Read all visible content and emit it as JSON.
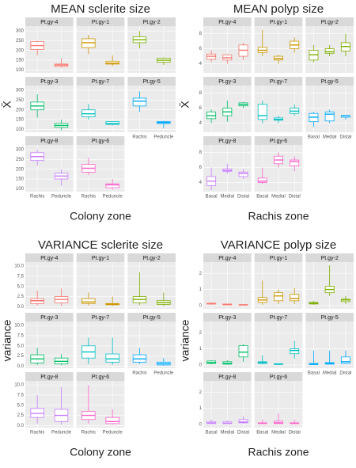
{
  "chart_data": [
    {
      "type": "box",
      "title": "MEAN sclerite size",
      "xlabel": "Colony zone",
      "ylabel": "X̄",
      "categories": [
        "Rachis",
        "Peduncle"
      ],
      "ylim": [
        85,
        325
      ],
      "yticks": [
        100,
        150,
        200,
        250,
        300
      ],
      "facets": [
        {
          "name": "Pt.gy-4",
          "color": "#F8766D",
          "boxes": [
            [
              175,
              205,
              225,
              245,
              250
            ],
            [
              110,
              118,
              125,
              130,
              160
            ]
          ]
        },
        {
          "name": "Pt.gy-1",
          "color": "#CD9600",
          "boxes": [
            [
              180,
              215,
              240,
              260,
              280
            ],
            [
              120,
              130,
              135,
              145,
              175
            ]
          ]
        },
        {
          "name": "Pt.gy-2",
          "color": "#7CAE00",
          "boxes": [
            [
              210,
              240,
              255,
              270,
              300
            ],
            [
              125,
              140,
              150,
              160,
              165
            ]
          ]
        },
        {
          "name": "Pt.gy-3",
          "color": "#00BE67",
          "boxes": [
            [
              160,
              200,
              220,
              240,
              280
            ],
            [
              95,
              110,
              120,
              130,
              150
            ]
          ]
        },
        {
          "name": "Pt.gy-7",
          "color": "#00BFC4",
          "boxes": [
            [
              150,
              165,
              180,
              200,
              230
            ],
            [
              120,
              125,
              130,
              140,
              140
            ]
          ]
        },
        {
          "name": "Pt.gy-5",
          "color": "#00A9FF",
          "boxes": [
            [
              190,
              220,
              245,
              260,
              295
            ],
            [
              105,
              130,
              135,
              140,
              145
            ]
          ]
        },
        {
          "name": "Pt.gy-8",
          "color": "#C77CFF",
          "boxes": [
            [
              220,
              245,
              265,
              285,
              300
            ],
            [
              115,
              150,
              165,
              180,
              200
            ]
          ]
        },
        {
          "name": "Pt.gy-6",
          "color": "#FF61CC",
          "boxes": [
            [
              170,
              185,
              205,
              225,
              260
            ],
            [
              95,
              105,
              120,
              125,
              150
            ]
          ]
        }
      ]
    },
    {
      "type": "box",
      "title": "MEAN polyp size",
      "xlabel": "Rachis zone",
      "ylabel": "X̄",
      "categories": [
        "Basal",
        "Medial",
        "Distal"
      ],
      "ylim": [
        2.8,
        9
      ],
      "yticks": [
        4,
        6,
        8
      ],
      "facets": [
        {
          "name": "Pt.gy-4",
          "color": "#F8766D",
          "boxes": [
            [
              4.2,
              4.6,
              5.0,
              5.3,
              5.8
            ],
            [
              4.0,
              4.5,
              4.8,
              5.2,
              5.3
            ],
            [
              4.5,
              5.0,
              5.8,
              6.5,
              6.8
            ]
          ]
        },
        {
          "name": "Pt.gy-1",
          "color": "#CD9600",
          "boxes": [
            [
              5.0,
              5.5,
              5.8,
              6.2,
              8.5
            ],
            [
              4.0,
              4.5,
              4.7,
              5.0,
              5.2
            ],
            [
              5.5,
              6.0,
              6.5,
              7.0,
              7.5
            ]
          ]
        },
        {
          "name": "Pt.gy-2",
          "color": "#7CAE00",
          "boxes": [
            [
              4.2,
              4.5,
              5.2,
              5.8,
              6.5
            ],
            [
              5.0,
              5.4,
              5.6,
              6.0,
              6.5
            ],
            [
              5.0,
              5.7,
              6.3,
              6.8,
              8.0
            ]
          ]
        },
        {
          "name": "Pt.gy-3",
          "color": "#00BE67",
          "boxes": [
            [
              4.0,
              4.6,
              5.0,
              5.5,
              5.8
            ],
            [
              4.2,
              5.0,
              5.5,
              6.0,
              7.0
            ],
            [
              6.0,
              6.3,
              6.5,
              6.7,
              6.8
            ]
          ]
        },
        {
          "name": "Pt.gy-7",
          "color": "#00BFC4",
          "boxes": [
            [
              4.0,
              4.5,
              5.0,
              6.5,
              7.0
            ],
            [
              4.0,
              4.4,
              4.5,
              4.7,
              5.0
            ],
            [
              5.0,
              5.3,
              5.6,
              6.0,
              6.5
            ]
          ]
        },
        {
          "name": "Pt.gy-5",
          "color": "#00A9FF",
          "boxes": [
            [
              3.5,
              4.2,
              4.8,
              5.3,
              5.5
            ],
            [
              4.0,
              4.3,
              5.2,
              5.5,
              5.8
            ],
            [
              4.5,
              4.8,
              5.0,
              5.0,
              5.0
            ]
          ]
        },
        {
          "name": "Pt.gy-8",
          "color": "#C77CFF",
          "boxes": [
            [
              3.0,
              3.6,
              4.2,
              4.8,
              6.0
            ],
            [
              5.2,
              5.5,
              5.6,
              5.8,
              6.5
            ],
            [
              4.5,
              4.8,
              5.2,
              5.4,
              5.8
            ]
          ]
        },
        {
          "name": "Pt.gy-6",
          "color": "#FF61CC",
          "boxes": [
            [
              3.8,
              4.0,
              4.2,
              4.6,
              6.0
            ],
            [
              6.0,
              6.5,
              7.0,
              7.5,
              8.0
            ],
            [
              5.5,
              6.2,
              6.8,
              7.0,
              7.5
            ]
          ]
        }
      ]
    },
    {
      "type": "box",
      "title": "VARIANCE sclerite size",
      "xlabel": "Colony zone",
      "ylabel": "variance",
      "categories": [
        "Rachis",
        "Peduncle"
      ],
      "ylim": [
        -0.5,
        11
      ],
      "yticks": [
        {
          "value": 0,
          "label": "0.0"
        },
        2.5,
        {
          "value": 5,
          "label": "5.0"
        },
        7.5,
        {
          "value": 10,
          "label": "10.0"
        }
      ],
      "facets": [
        {
          "name": "Pt.gy-4",
          "color": "#F8766D",
          "boxes": [
            [
              0.3,
              0.8,
              1.5,
              2.0,
              4.0
            ],
            [
              0.2,
              1.0,
              1.8,
              2.5,
              4.5
            ]
          ]
        },
        {
          "name": "Pt.gy-1",
          "color": "#CD9600",
          "boxes": [
            [
              0.3,
              0.8,
              1.2,
              2.0,
              3.5
            ],
            [
              0.2,
              0.5,
              0.7,
              0.8,
              2.5
            ]
          ]
        },
        {
          "name": "Pt.gy-2",
          "color": "#7CAE00",
          "boxes": [
            [
              0.4,
              1.0,
              1.8,
              2.5,
              8.5
            ],
            [
              0.2,
              0.6,
              1.0,
              1.5,
              3.5
            ]
          ]
        },
        {
          "name": "Pt.gy-3",
          "color": "#00BE67",
          "boxes": [
            [
              0.3,
              0.8,
              1.8,
              2.8,
              4.5
            ],
            [
              0.2,
              0.6,
              1.2,
              2.0,
              3.0
            ]
          ]
        },
        {
          "name": "Pt.gy-7",
          "color": "#00BFC4",
          "boxes": [
            [
              0.5,
              2.0,
              3.5,
              5.0,
              7.0
            ],
            [
              0.3,
              1.0,
              1.8,
              3.0,
              7.0
            ]
          ]
        },
        {
          "name": "Pt.gy-5",
          "color": "#00A9FF",
          "boxes": [
            [
              0.5,
              1.0,
              1.8,
              2.8,
              4.5
            ],
            [
              0.1,
              0.3,
              0.6,
              1.0,
              2.0
            ]
          ]
        },
        {
          "name": "Pt.gy-8",
          "color": "#C77CFF",
          "boxes": [
            [
              0.5,
              2.0,
              3.0,
              4.2,
              7.5
            ],
            [
              0.2,
              1.0,
              2.5,
              4.0,
              9.5
            ]
          ]
        },
        {
          "name": "Pt.gy-6",
          "color": "#FF61CC",
          "boxes": [
            [
              0.5,
              1.5,
              2.5,
              3.5,
              10.0
            ],
            [
              0.2,
              0.5,
              1.0,
              2.0,
              4.0
            ]
          ]
        }
      ]
    },
    {
      "type": "box",
      "title": "VARIANCE polyp size",
      "xlabel": "Rachis zone",
      "ylabel": "variance",
      "categories": [
        "Basal",
        "Medial",
        "Distal"
      ],
      "ylim": [
        -0.2,
        2.7
      ],
      "yticks": [
        0,
        1,
        2
      ],
      "facets": [
        {
          "name": "Pt.gy-4",
          "color": "#F8766D",
          "boxes": [
            [
              0.05,
              0.1,
              0.12,
              0.15,
              0.2
            ],
            [
              0.02,
              0.05,
              0.07,
              0.1,
              0.12
            ],
            [
              0.02,
              0.03,
              0.05,
              0.06,
              0.08
            ]
          ]
        },
        {
          "name": "Pt.gy-1",
          "color": "#CD9600",
          "boxes": [
            [
              0.05,
              0.2,
              0.35,
              0.5,
              1.55
            ],
            [
              0.1,
              0.3,
              0.6,
              0.8,
              1.0
            ],
            [
              0.1,
              0.3,
              0.45,
              0.7,
              1.1
            ]
          ]
        },
        {
          "name": "Pt.gy-2",
          "color": "#7CAE00",
          "boxes": [
            [
              0.05,
              0.1,
              0.15,
              0.2,
              0.3
            ],
            [
              0.6,
              0.8,
              1.0,
              1.2,
              2.5
            ],
            [
              0.1,
              0.25,
              0.35,
              0.4,
              0.6
            ]
          ]
        },
        {
          "name": "Pt.gy-3",
          "color": "#00BE67",
          "boxes": [
            [
              0.05,
              0.1,
              0.15,
              0.25,
              0.3
            ],
            [
              0.02,
              0.05,
              0.1,
              0.2,
              0.3
            ],
            [
              0.2,
              0.5,
              0.8,
              1.2,
              1.3
            ]
          ]
        },
        {
          "name": "Pt.gy-7",
          "color": "#00BFC4",
          "boxes": [
            [
              0.05,
              0.1,
              0.15,
              0.2,
              0.6
            ],
            [
              0.01,
              0.03,
              0.05,
              0.08,
              0.1
            ],
            [
              0.4,
              0.7,
              0.9,
              1.0,
              1.5
            ]
          ]
        },
        {
          "name": "Pt.gy-5",
          "color": "#00A9FF",
          "boxes": [
            [
              0.0,
              0.02,
              0.05,
              0.1,
              0.9
            ],
            [
              0.02,
              0.05,
              0.1,
              0.15,
              0.9
            ],
            [
              0.05,
              0.1,
              0.2,
              0.5,
              0.9
            ]
          ]
        },
        {
          "name": "Pt.gy-8",
          "color": "#C77CFF",
          "boxes": [
            [
              0.02,
              0.05,
              0.08,
              0.15,
              0.3
            ],
            [
              0.02,
              0.05,
              0.07,
              0.15,
              0.25
            ],
            [
              0.05,
              0.1,
              0.15,
              0.3,
              0.5
            ]
          ]
        },
        {
          "name": "Pt.gy-6",
          "color": "#FF61CC",
          "boxes": [
            [
              0.02,
              0.05,
              0.07,
              0.1,
              0.3
            ],
            [
              0.02,
              0.05,
              0.1,
              0.2,
              0.7
            ],
            [
              0.02,
              0.05,
              0.06,
              0.1,
              0.3
            ]
          ]
        }
      ]
    }
  ]
}
